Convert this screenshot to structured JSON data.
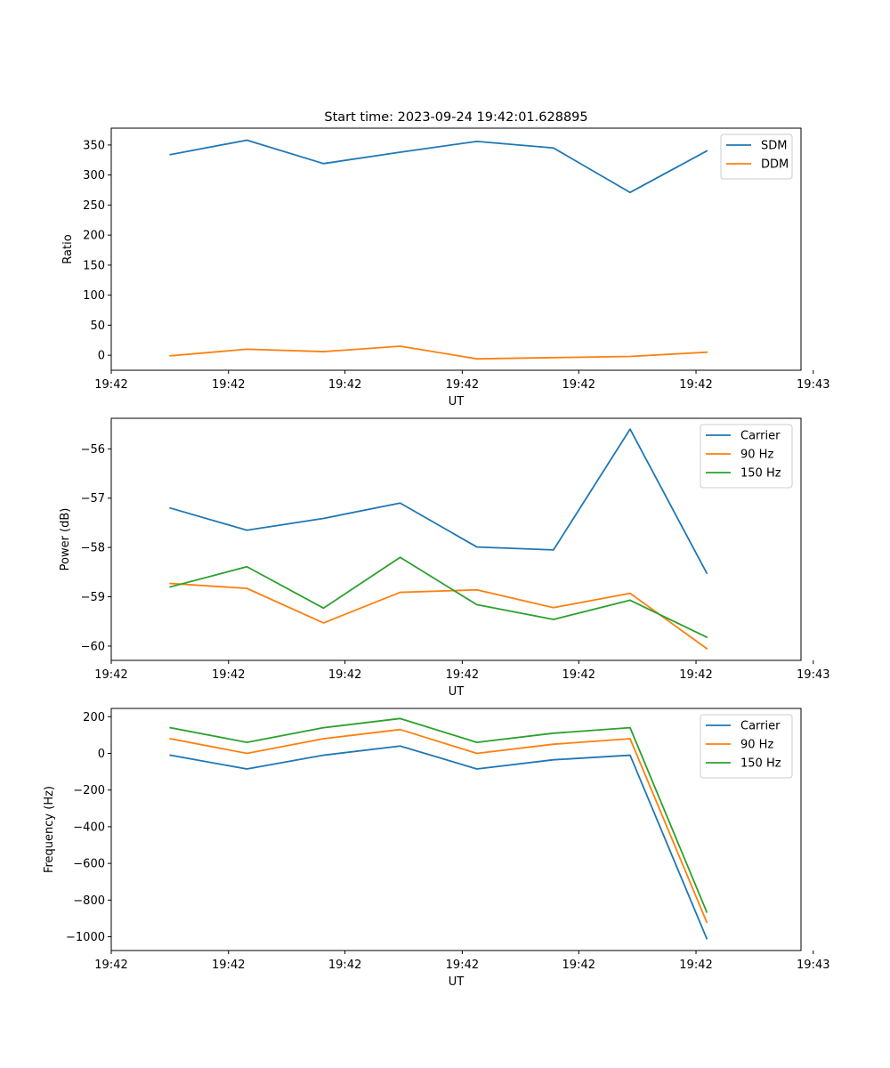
{
  "figure": {
    "title": "Start time: 2023-09-24 19:42:01.628895"
  },
  "chart_data": [
    {
      "type": "line",
      "title": "Start time: 2023-09-24 19:42:01.628895",
      "xlabel": "UT",
      "ylabel": "Ratio",
      "x": [
        1,
        2,
        3,
        4,
        5,
        6,
        7,
        8
      ],
      "xlim": [
        0.23,
        9.23
      ],
      "x_ticks": [
        0.23,
        1.76,
        3.28,
        4.81,
        6.33,
        7.86,
        9.39
      ],
      "x_tick_labels": [
        "19:42",
        "19:42",
        "19:42",
        "19:42",
        "19:42",
        "19:42",
        "19:43"
      ],
      "ylim": [
        -25,
        378
      ],
      "y_ticks": [
        0,
        50,
        100,
        150,
        200,
        250,
        300,
        350
      ],
      "y_tick_labels": [
        "0",
        "50",
        "100",
        "150",
        "200",
        "250",
        "300",
        "350"
      ],
      "legend_position": "top-right",
      "series": [
        {
          "name": "SDM",
          "color": "#1f77b4",
          "values": [
            334,
            358,
            319,
            338,
            356,
            345,
            271,
            340
          ]
        },
        {
          "name": "DDM",
          "color": "#ff7f0e",
          "values": [
            -1,
            10,
            6,
            15,
            -6,
            -4,
            -2,
            5
          ]
        }
      ]
    },
    {
      "type": "line",
      "title": "",
      "xlabel": "UT",
      "ylabel": "Power (dB)",
      "x": [
        1,
        2,
        3,
        4,
        5,
        6,
        7,
        8
      ],
      "xlim": [
        0.23,
        9.23
      ],
      "x_ticks": [
        0.23,
        1.76,
        3.28,
        4.81,
        6.33,
        7.86,
        9.39
      ],
      "x_tick_labels": [
        "19:42",
        "19:42",
        "19:42",
        "19:42",
        "19:42",
        "19:42",
        "19:43"
      ],
      "ylim": [
        -60.29,
        -55.38
      ],
      "y_ticks": [
        -60,
        -59,
        -58,
        -57,
        -56
      ],
      "y_tick_labels": [
        "−60",
        "−59",
        "−58",
        "−57",
        "−56"
      ],
      "legend_position": "top-right",
      "series": [
        {
          "name": "Carrier",
          "color": "#1f77b4",
          "values": [
            -57.2,
            -57.65,
            -57.41,
            -57.1,
            -57.99,
            -58.05,
            -55.6,
            -58.52
          ]
        },
        {
          "name": "90 Hz",
          "color": "#ff7f0e",
          "values": [
            -58.73,
            -58.83,
            -59.53,
            -58.91,
            -58.86,
            -59.22,
            -58.93,
            -60.05
          ]
        },
        {
          "name": "150 Hz",
          "color": "#2ca02c",
          "values": [
            -58.8,
            -58.39,
            -59.23,
            -58.2,
            -59.16,
            -59.46,
            -59.07,
            -59.82
          ]
        }
      ]
    },
    {
      "type": "line",
      "title": "",
      "xlabel": "UT",
      "ylabel": "Frequency (Hz)",
      "x": [
        1,
        2,
        3,
        4,
        5,
        6,
        7,
        8
      ],
      "xlim": [
        0.23,
        9.23
      ],
      "x_ticks": [
        0.23,
        1.76,
        3.28,
        4.81,
        6.33,
        7.86,
        9.39
      ],
      "x_tick_labels": [
        "19:42",
        "19:42",
        "19:42",
        "19:42",
        "19:42",
        "19:42",
        "19:43"
      ],
      "ylim": [
        -1075,
        245
      ],
      "y_ticks": [
        -1000,
        -800,
        -600,
        -400,
        -200,
        0,
        200
      ],
      "y_tick_labels": [
        "−1000",
        "−800",
        "−600",
        "−400",
        "−200",
        "0",
        "200"
      ],
      "legend_position": "top-right",
      "series": [
        {
          "name": "Carrier",
          "color": "#1f77b4",
          "values": [
            -10,
            -85,
            -10,
            40,
            -85,
            -35,
            -10,
            -1010
          ]
        },
        {
          "name": "90 Hz",
          "color": "#ff7f0e",
          "values": [
            80,
            0,
            80,
            130,
            0,
            50,
            80,
            -920
          ]
        },
        {
          "name": "150 Hz",
          "color": "#2ca02c",
          "values": [
            140,
            60,
            140,
            190,
            60,
            110,
            140,
            -865
          ]
        }
      ]
    }
  ]
}
